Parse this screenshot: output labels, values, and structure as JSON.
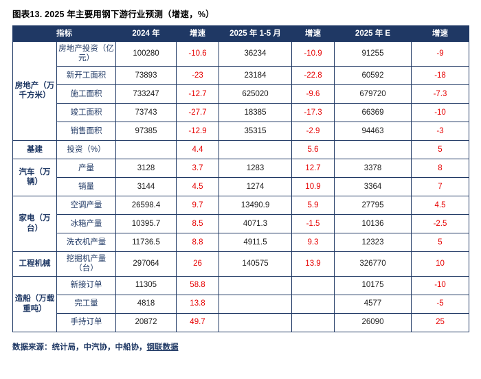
{
  "chart_data": {
    "type": "table",
    "title": "图表13. 2025 年主要用钢下游行业预测（增速，%）",
    "header": {
      "indicator": "指标",
      "cols": [
        "2024 年",
        "增速",
        "2025 年 1-5 月",
        "增速",
        "2025 年 E",
        "增速"
      ]
    },
    "groups": [
      {
        "category": "房地产（万千方米）",
        "rows": [
          {
            "name": "房地产投资（亿元）",
            "v2024": "100280",
            "g2024": "-10.6",
            "v2025m": "36234",
            "g2025m": "-10.9",
            "v2025e": "91255",
            "g2025e": "-9"
          },
          {
            "name": "新开工面积",
            "v2024": "73893",
            "g2024": "-23",
            "v2025m": "23184",
            "g2025m": "-22.8",
            "v2025e": "60592",
            "g2025e": "-18"
          },
          {
            "name": "施工面积",
            "v2024": "733247",
            "g2024": "-12.7",
            "v2025m": "625020",
            "g2025m": "-9.6",
            "v2025e": "679720",
            "g2025e": "-7.3"
          },
          {
            "name": "竣工面积",
            "v2024": "73743",
            "g2024": "-27.7",
            "v2025m": "18385",
            "g2025m": "-17.3",
            "v2025e": "66369",
            "g2025e": "-10"
          },
          {
            "name": "销售面积",
            "v2024": "97385",
            "g2024": "-12.9",
            "v2025m": "35315",
            "g2025m": "-2.9",
            "v2025e": "94463",
            "g2025e": "-3"
          }
        ]
      },
      {
        "category": "基建",
        "rows": [
          {
            "name": "投资（%）",
            "v2024": "",
            "g2024": "4.4",
            "v2025m": "",
            "g2025m": "5.6",
            "v2025e": "",
            "g2025e": "5"
          }
        ]
      },
      {
        "category": "汽车（万辆）",
        "rows": [
          {
            "name": "产量",
            "v2024": "3128",
            "g2024": "3.7",
            "v2025m": "1283",
            "g2025m": "12.7",
            "v2025e": "3378",
            "g2025e": "8"
          },
          {
            "name": "销量",
            "v2024": "3144",
            "g2024": "4.5",
            "v2025m": "1274",
            "g2025m": "10.9",
            "v2025e": "3364",
            "g2025e": "7"
          }
        ]
      },
      {
        "category": "家电（万台）",
        "rows": [
          {
            "name": "空调产量",
            "v2024": "26598.4",
            "g2024": "9.7",
            "v2025m": "13490.9",
            "g2025m": "5.9",
            "v2025e": "27795",
            "g2025e": "4.5"
          },
          {
            "name": "冰箱产量",
            "v2024": "10395.7",
            "g2024": "8.5",
            "v2025m": "4071.3",
            "g2025m": "-1.5",
            "v2025e": "10136",
            "g2025e": "-2.5"
          },
          {
            "name": "洗衣机产量",
            "v2024": "11736.5",
            "g2024": "8.8",
            "v2025m": "4911.5",
            "g2025m": "9.3",
            "v2025e": "12323",
            "g2025e": "5"
          }
        ]
      },
      {
        "category": "工程机械",
        "rows": [
          {
            "name": "挖掘机产量（台）",
            "v2024": "297064",
            "g2024": "26",
            "v2025m": "140575",
            "g2025m": "13.9",
            "v2025e": "326770",
            "g2025e": "10"
          }
        ]
      },
      {
        "category": "造船（万载重吨）",
        "rows": [
          {
            "name": "新接订单",
            "v2024": "11305",
            "g2024": "58.8",
            "v2025m": "",
            "g2025m": "",
            "v2025e": "10175",
            "g2025e": "-10"
          },
          {
            "name": "完工量",
            "v2024": "4818",
            "g2024": "13.8",
            "v2025m": "",
            "g2025m": "",
            "v2025e": "4577",
            "g2025e": "-5"
          },
          {
            "name": "手持订单",
            "v2024": "20872",
            "g2024": "49.7",
            "v2025m": "",
            "g2025m": "",
            "v2025e": "26090",
            "g2025e": "25"
          }
        ]
      }
    ]
  },
  "footer": {
    "prefix": "数据来源：统计局，中汽协，中船协，",
    "source": "钢联数据"
  }
}
